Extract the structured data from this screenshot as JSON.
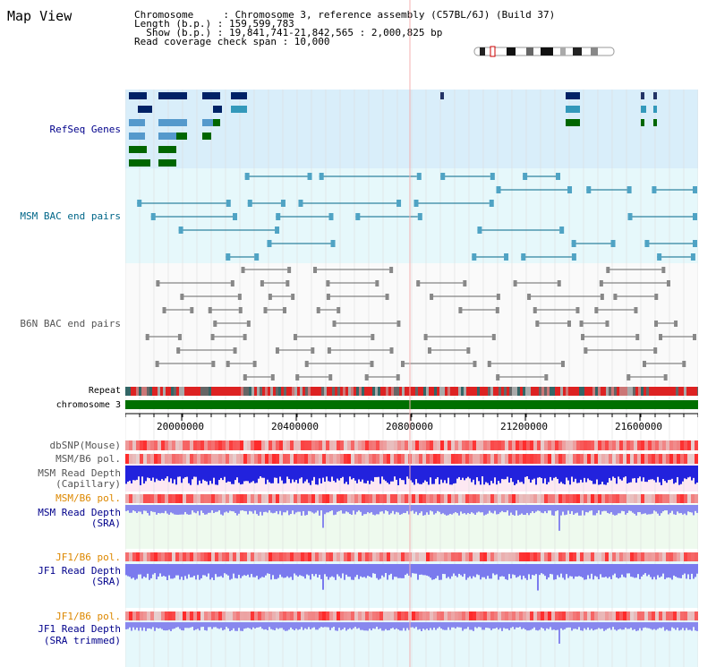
{
  "header": {
    "title": "Map View",
    "chromosome_line": "Chromosome     : Chromosome 3, reference assembly (C57BL/6J) (Build 37)",
    "length_line": "Length (b.p.) : 159,599,783",
    "show_line": "  Show (b.p.) : 19,841,741-21,842,565 : 2,000,825 bp",
    "coverage_line": "Read coverage check span : 10,000"
  },
  "tracks": {
    "refseq": "RefSeq Genes",
    "msm_bac": "MSM BAC end pairs",
    "b6n_bac": "B6N BAC end pairs",
    "repeat": "Repeat",
    "chromosome": "chromosome 3",
    "dbsnp": "dbSNP(Mouse)",
    "msm_b6_pol_1": "MSM/B6 pol.",
    "msm_read_depth_cap_1": "MSM Read Depth",
    "msm_read_depth_cap_2": "(Capillary)",
    "msm_b6_pol_2": "MSM/B6 pol.",
    "msm_read_depth_sra_1": "MSM Read Depth",
    "msm_read_depth_sra_2": "(SRA)",
    "jf1_b6_pol_1": "JF1/B6 pol.",
    "jf1_read_depth_1": "JF1 Read Depth",
    "jf1_read_depth_2": "(SRA)",
    "jf1_b6_pol_2": "JF1/B6 pol.",
    "jf1_read_depth_trim_1": "JF1 Read Depth",
    "jf1_read_depth_trim_2": "(SRA trimmed)"
  },
  "axis": {
    "ticks": [
      "20000000",
      "20400000",
      "20800000",
      "21200000",
      "21600000"
    ]
  },
  "colors": {
    "refseq_bg": "#d9eefa",
    "msm_bac_bg": "#e6f8fb",
    "b6n_bg": "#f2f2f2",
    "chromosome": "#007000",
    "depth_blue": "#2222dd",
    "sra_blue": "#8888ee",
    "label_navy": "#00008b",
    "label_teal": "#006688",
    "label_orange": "#dd8800"
  }
}
